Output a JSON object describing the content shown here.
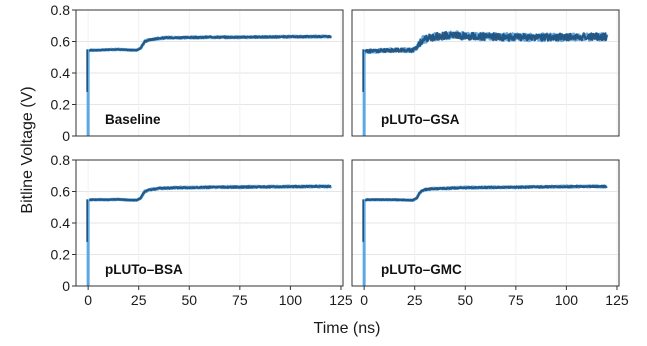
{
  "figure": {
    "ylabel": "Bitline Voltage (V)",
    "xlabel": "Time (ns)"
  },
  "chart_data": [
    {
      "type": "line",
      "title": "Baseline",
      "xlim": [
        -6,
        126
      ],
      "ylim": [
        0,
        0.8
      ],
      "xticks": [
        0,
        25,
        50,
        75,
        100,
        125
      ],
      "yticks": [
        0,
        0.2,
        0.4,
        0.6,
        0.8
      ],
      "grid": true,
      "colors": {
        "dark": "#1f4e79",
        "light": "#5aa9e6"
      },
      "x": [
        0,
        0.3,
        0.6,
        1.5,
        5,
        10,
        15,
        20,
        24,
        26,
        27,
        28,
        30,
        35,
        40,
        45,
        50,
        55,
        60,
        70,
        80,
        90,
        100,
        110,
        115,
        120
      ],
      "y": [
        0,
        0.3,
        0.545,
        0.545,
        0.545,
        0.548,
        0.55,
        0.546,
        0.545,
        0.558,
        0.58,
        0.6,
        0.61,
        0.62,
        0.625,
        0.624,
        0.626,
        0.625,
        0.628,
        0.627,
        0.628,
        0.629,
        0.63,
        0.631,
        0.632,
        0.632
      ],
      "noise": 0.004
    },
    {
      "type": "line",
      "title": "pLUTo–GSA",
      "xlim": [
        -6,
        126
      ],
      "ylim": [
        0,
        0.8
      ],
      "xticks": [
        0,
        25,
        50,
        75,
        100,
        125
      ],
      "yticks": [
        0,
        0.2,
        0.4,
        0.6,
        0.8
      ],
      "grid": true,
      "colors": {
        "dark": "#1f4e79",
        "light": "#5aa9e6"
      },
      "x": [
        0,
        0.3,
        0.6,
        1.5,
        5,
        10,
        15,
        20,
        24,
        26,
        27,
        28,
        30,
        35,
        40,
        45,
        50,
        55,
        60,
        70,
        80,
        90,
        100,
        110,
        115,
        120
      ],
      "y": [
        0,
        0.3,
        0.54,
        0.54,
        0.54,
        0.543,
        0.545,
        0.545,
        0.545,
        0.56,
        0.585,
        0.6,
        0.615,
        0.63,
        0.638,
        0.64,
        0.635,
        0.632,
        0.63,
        0.628,
        0.627,
        0.626,
        0.628,
        0.63,
        0.63,
        0.63
      ],
      "noise": 0.022
    },
    {
      "type": "line",
      "title": "pLUTo–BSA",
      "xlim": [
        -6,
        126
      ],
      "ylim": [
        0,
        0.8
      ],
      "xticks": [
        0,
        25,
        50,
        75,
        100,
        125
      ],
      "yticks": [
        0,
        0.2,
        0.4,
        0.6,
        0.8
      ],
      "grid": true,
      "colors": {
        "dark": "#1f4e79",
        "light": "#5aa9e6"
      },
      "x": [
        0,
        0.3,
        0.6,
        1.5,
        5,
        10,
        15,
        20,
        24,
        26,
        27,
        28,
        30,
        35,
        40,
        45,
        50,
        55,
        60,
        70,
        80,
        90,
        100,
        110,
        115,
        120
      ],
      "y": [
        0,
        0.3,
        0.545,
        0.548,
        0.548,
        0.548,
        0.55,
        0.546,
        0.545,
        0.558,
        0.58,
        0.6,
        0.61,
        0.62,
        0.622,
        0.624,
        0.625,
        0.625,
        0.627,
        0.628,
        0.629,
        0.63,
        0.631,
        0.632,
        0.632,
        0.632
      ],
      "noise": 0.004
    },
    {
      "type": "line",
      "title": "pLUTo–GMC",
      "xlim": [
        -6,
        126
      ],
      "ylim": [
        0,
        0.8
      ],
      "xticks": [
        0,
        25,
        50,
        75,
        100,
        125
      ],
      "yticks": [
        0,
        0.2,
        0.4,
        0.6,
        0.8
      ],
      "grid": true,
      "colors": {
        "dark": "#1f4e79",
        "light": "#5aa9e6"
      },
      "x": [
        0,
        0.3,
        0.6,
        1.5,
        5,
        10,
        15,
        20,
        24,
        26,
        27,
        28,
        30,
        35,
        40,
        45,
        50,
        55,
        60,
        70,
        80,
        90,
        100,
        110,
        115,
        120
      ],
      "y": [
        0,
        0.3,
        0.545,
        0.548,
        0.548,
        0.548,
        0.548,
        0.546,
        0.545,
        0.558,
        0.58,
        0.6,
        0.612,
        0.618,
        0.62,
        0.622,
        0.625,
        0.625,
        0.626,
        0.627,
        0.628,
        0.63,
        0.631,
        0.632,
        0.632,
        0.632
      ],
      "noise": 0.004
    }
  ]
}
